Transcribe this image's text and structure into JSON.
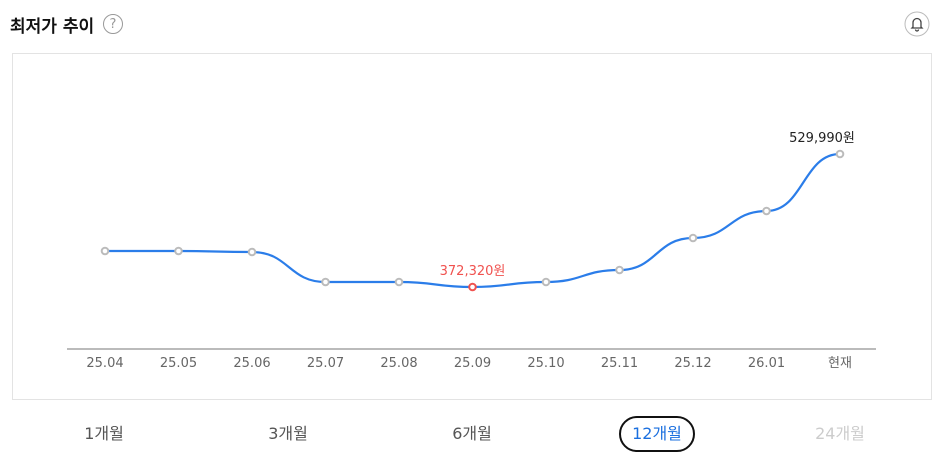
{
  "header": {
    "title": "최저가 추이",
    "help_icon": "?"
  },
  "chart_data": {
    "type": "line",
    "categories": [
      "25.04",
      "25.05",
      "25.06",
      "25.07",
      "25.08",
      "25.09",
      "25.10",
      "25.11",
      "25.12",
      "26.01",
      "현재"
    ],
    "values": [
      415000,
      415000,
      413800,
      378250,
      378250,
      372320,
      378250,
      392470,
      430410,
      462420,
      529990
    ],
    "value_labels": [
      null,
      null,
      null,
      null,
      null,
      "372,320원",
      null,
      null,
      null,
      null,
      "529,990원"
    ],
    "color": "#2b7de9",
    "min_color": "#f0524f",
    "max_color": "#222222"
  },
  "period_tabs": {
    "options": [
      "1개월",
      "3개월",
      "6개월",
      "12개월",
      "24개월"
    ],
    "selected": 3,
    "disabled": [
      4
    ]
  }
}
